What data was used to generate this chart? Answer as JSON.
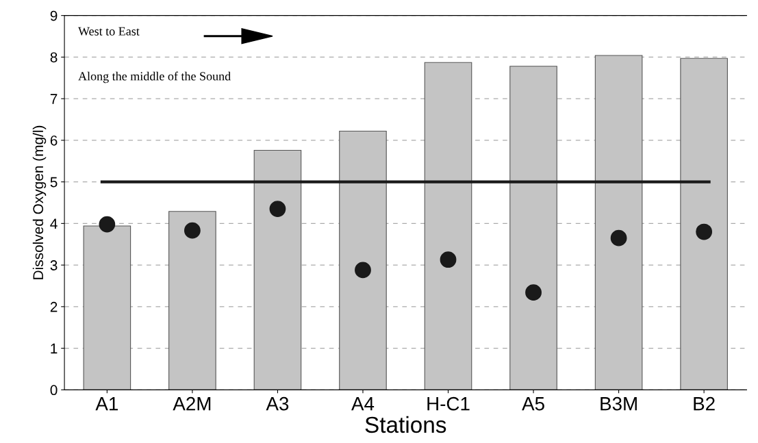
{
  "chart_data": {
    "type": "bar",
    "xlabel": "Stations",
    "ylabel": "Dissolved Oxygen (mg/l)",
    "categories": [
      "A1",
      "A2M",
      "A3",
      "A4",
      "H-C1",
      "A5",
      "B3M",
      "B2"
    ],
    "series": [
      {
        "color": "#c4c4c4",
        "values": [
          3.94,
          4.29,
          5.76,
          6.22,
          7.87,
          7.78,
          8.04,
          7.97
        ]
      },
      {
        "type": "scatter",
        "color": "#1a1a1a",
        "marker": "circle",
        "x": [
          "A1",
          "A2M",
          "A3",
          "A4",
          "H-C1",
          "A5",
          "B3M",
          "B2"
        ],
        "values": [
          3.98,
          3.83,
          4.35,
          2.88,
          3.13,
          2.34,
          3.65,
          3.8
        ]
      }
    ],
    "ylim": [
      0,
      9
    ],
    "yticks": [
      0,
      1,
      2,
      3,
      4,
      5,
      6,
      7,
      8,
      9
    ],
    "grid": "y",
    "ref_lines": [
      {
        "axis": "y",
        "value": 5,
        "color": "#1a1a1a",
        "line_style": "solid"
      }
    ],
    "annotations": [
      "West to East",
      "Along the middle of the Sound"
    ]
  }
}
